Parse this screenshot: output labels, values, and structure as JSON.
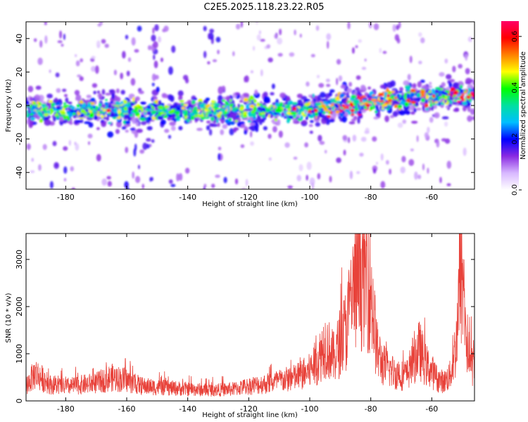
{
  "title": "C2E5.2025.118.23.22.R05",
  "chart_data": [
    {
      "type": "heatmap",
      "xlabel": "Height of straight line (km)",
      "ylabel": "Frequency (Hz)",
      "xlim": [
        -193,
        -46
      ],
      "ylim": [
        -50,
        50
      ],
      "xticks": [
        -180,
        -160,
        -140,
        -120,
        -100,
        -80,
        -60
      ],
      "yticks": [
        -40,
        -20,
        0,
        20,
        40
      ],
      "ridge": {
        "x": [
          -193,
          -110,
          -100,
          -90,
          -80,
          -70,
          -60,
          -50,
          -46
        ],
        "y": [
          -3,
          -3,
          -2,
          0,
          2,
          4,
          5,
          6,
          6
        ]
      },
      "colorbar": {
        "label": "Normalized spectral amplitude",
        "range": [
          0,
          0.66
        ],
        "ticks": [
          0.0,
          0.2,
          0.4,
          0.6
        ],
        "colors": [
          "#ffffff",
          "#d8b8ff",
          "#8a2be2",
          "#0000ff",
          "#00bfff",
          "#00e0a0",
          "#00ff00",
          "#ffff00",
          "#ff8000",
          "#ff0000",
          "#ff0066"
        ]
      }
    },
    {
      "type": "line",
      "color": "#e8423a",
      "xlabel": "Height of straight line (km)",
      "ylabel": "SNR (10 * v/v)",
      "xlim": [
        -193,
        -46
      ],
      "ylim": [
        0,
        3550
      ],
      "xticks": [
        -180,
        -160,
        -140,
        -120,
        -100,
        -80,
        -60
      ],
      "yticks": [
        0,
        1000,
        2000,
        3000
      ],
      "x": [
        -193,
        -190,
        -185,
        -180,
        -175,
        -170,
        -165,
        -160,
        -155,
        -150,
        -145,
        -140,
        -135,
        -130,
        -125,
        -120,
        -115,
        -110,
        -105,
        -100,
        -97,
        -95,
        -92,
        -90,
        -88,
        -86,
        -84,
        -82,
        -80,
        -78,
        -76,
        -74,
        -72,
        -70,
        -68,
        -66,
        -64,
        -62,
        -60,
        -58,
        -56,
        -54,
        -52,
        -51,
        -50,
        -49,
        -48,
        -46
      ],
      "y": [
        350,
        650,
        380,
        330,
        380,
        420,
        550,
        480,
        350,
        320,
        300,
        280,
        260,
        260,
        280,
        350,
        400,
        470,
        540,
        700,
        1000,
        1350,
        1000,
        1400,
        1700,
        2500,
        2800,
        3200,
        2600,
        1200,
        850,
        750,
        650,
        600,
        620,
        1000,
        1200,
        850,
        700,
        500,
        450,
        600,
        1300,
        2600,
        3100,
        1800,
        1100,
        700
      ],
      "peaks": [
        1200,
        3500,
        3480
      ]
    }
  ]
}
